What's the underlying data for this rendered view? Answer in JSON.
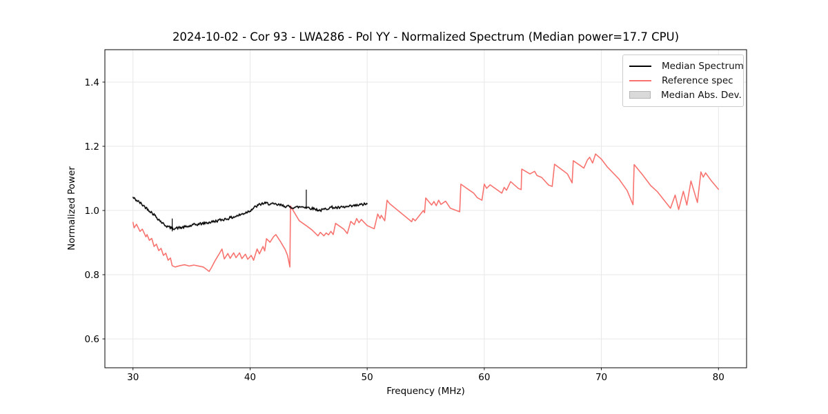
{
  "chart_data": {
    "type": "line",
    "title": "2024-10-02 - Cor 93 - LWA286 - Pol YY - Normalized Spectrum (Median power=17.7 CPU)",
    "xlabel": "Frequency (MHz)",
    "ylabel": "Normalized Power",
    "xlim": [
      27.6,
      82.4
    ],
    "ylim": [
      0.51,
      1.501
    ],
    "xticks": [
      30,
      40,
      50,
      60,
      70,
      80
    ],
    "yticks": [
      0.6,
      0.8,
      1.0,
      1.2,
      1.4
    ],
    "grid": true,
    "grid_color": "#e7e7e7",
    "legend_position": "upper right",
    "series": [
      {
        "name": "Median Spectrum",
        "color": "#000000",
        "width": 1.4,
        "noise_amp": 0.0045,
        "points": [
          [
            30.0,
            1.04
          ],
          [
            30.3,
            1.032
          ],
          [
            30.6,
            1.024
          ],
          [
            31.0,
            1.012
          ],
          [
            31.4,
            1.0
          ],
          [
            31.8,
            0.987
          ],
          [
            32.2,
            0.972
          ],
          [
            32.6,
            0.958
          ],
          [
            33.0,
            0.949
          ],
          [
            33.3,
            0.945
          ],
          [
            33.7,
            0.945
          ],
          [
            34.2,
            0.947
          ],
          [
            34.7,
            0.95
          ],
          [
            35.2,
            0.955
          ],
          [
            35.7,
            0.958
          ],
          [
            36.2,
            0.961
          ],
          [
            36.7,
            0.964
          ],
          [
            37.2,
            0.968
          ],
          [
            37.7,
            0.972
          ],
          [
            38.2,
            0.976
          ],
          [
            38.7,
            0.981
          ],
          [
            39.2,
            0.987
          ],
          [
            39.6,
            0.993
          ],
          [
            40.0,
            1.0
          ],
          [
            40.4,
            1.01
          ],
          [
            40.8,
            1.018
          ],
          [
            41.1,
            1.022
          ],
          [
            41.5,
            1.022
          ],
          [
            42.0,
            1.019
          ],
          [
            42.5,
            1.017
          ],
          [
            43.0,
            1.014
          ],
          [
            43.5,
            1.01
          ],
          [
            44.0,
            1.01
          ],
          [
            44.5,
            1.012
          ],
          [
            45.0,
            1.009
          ],
          [
            45.5,
            1.005
          ],
          [
            46.0,
            1.0
          ],
          [
            46.3,
            1.003
          ],
          [
            46.7,
            1.008
          ],
          [
            47.0,
            1.01
          ],
          [
            47.5,
            1.008
          ],
          [
            48.0,
            1.01
          ],
          [
            48.5,
            1.012
          ],
          [
            49.0,
            1.015
          ],
          [
            49.5,
            1.018
          ],
          [
            50.0,
            1.021
          ]
        ],
        "spikes": [
          {
            "x": 33.35,
            "y0": 0.935,
            "y1": 0.975
          },
          {
            "x": 44.8,
            "y0": 1.005,
            "y1": 1.065
          }
        ]
      },
      {
        "name": "Reference spec",
        "color": "#f8736f",
        "width": 1.6,
        "noise_amp": 0,
        "points": [
          [
            30.0,
            0.963
          ],
          [
            30.1,
            0.946
          ],
          [
            30.3,
            0.957
          ],
          [
            30.6,
            0.935
          ],
          [
            30.8,
            0.942
          ],
          [
            31.1,
            0.918
          ],
          [
            31.2,
            0.925
          ],
          [
            31.4,
            0.907
          ],
          [
            31.6,
            0.913
          ],
          [
            31.8,
            0.888
          ],
          [
            32.0,
            0.895
          ],
          [
            32.2,
            0.875
          ],
          [
            32.4,
            0.882
          ],
          [
            32.6,
            0.86
          ],
          [
            32.8,
            0.867
          ],
          [
            33.0,
            0.845
          ],
          [
            33.2,
            0.852
          ],
          [
            33.35,
            0.828
          ],
          [
            33.6,
            0.824
          ],
          [
            34.0,
            0.828
          ],
          [
            34.4,
            0.831
          ],
          [
            34.8,
            0.827
          ],
          [
            35.2,
            0.83
          ],
          [
            35.6,
            0.827
          ],
          [
            36.0,
            0.824
          ],
          [
            36.3,
            0.816
          ],
          [
            36.5,
            0.81
          ],
          [
            36.7,
            0.822
          ],
          [
            37.0,
            0.843
          ],
          [
            37.3,
            0.861
          ],
          [
            37.6,
            0.88
          ],
          [
            37.8,
            0.849
          ],
          [
            38.1,
            0.866
          ],
          [
            38.3,
            0.851
          ],
          [
            38.6,
            0.868
          ],
          [
            38.8,
            0.853
          ],
          [
            39.1,
            0.868
          ],
          [
            39.3,
            0.85
          ],
          [
            39.6,
            0.864
          ],
          [
            39.8,
            0.848
          ],
          [
            40.1,
            0.86
          ],
          [
            40.3,
            0.845
          ],
          [
            40.6,
            0.88
          ],
          [
            40.8,
            0.865
          ],
          [
            41.1,
            0.888
          ],
          [
            41.25,
            0.874
          ],
          [
            41.4,
            0.912
          ],
          [
            41.7,
            0.901
          ],
          [
            42.0,
            0.918
          ],
          [
            42.2,
            0.925
          ],
          [
            42.6,
            0.903
          ],
          [
            43.0,
            0.878
          ],
          [
            43.2,
            0.86
          ],
          [
            43.4,
            0.824
          ],
          [
            43.45,
            1.014
          ],
          [
            44.2,
            0.968
          ],
          [
            44.9,
            0.95
          ],
          [
            45.3,
            0.939
          ],
          [
            45.8,
            0.921
          ],
          [
            46.0,
            0.932
          ],
          [
            46.3,
            0.921
          ],
          [
            46.5,
            0.93
          ],
          [
            46.7,
            0.924
          ],
          [
            46.9,
            0.935
          ],
          [
            47.1,
            0.925
          ],
          [
            47.3,
            0.96
          ],
          [
            48.0,
            0.942
          ],
          [
            48.3,
            0.928
          ],
          [
            48.6,
            0.966
          ],
          [
            48.9,
            0.956
          ],
          [
            49.1,
            0.975
          ],
          [
            49.3,
            0.962
          ],
          [
            49.5,
            0.972
          ],
          [
            50.0,
            0.953
          ],
          [
            50.6,
            0.943
          ],
          [
            50.9,
            0.989
          ],
          [
            51.1,
            0.975
          ],
          [
            51.2,
            0.985
          ],
          [
            51.5,
            0.968
          ],
          [
            51.7,
            1.032
          ],
          [
            51.9,
            1.022
          ],
          [
            53.8,
            0.965
          ],
          [
            53.9,
            0.975
          ],
          [
            54.1,
            0.968
          ],
          [
            54.8,
            1.0
          ],
          [
            54.9,
            0.993
          ],
          [
            55.0,
            1.039
          ],
          [
            55.5,
            1.017
          ],
          [
            55.7,
            1.028
          ],
          [
            55.9,
            1.015
          ],
          [
            56.1,
            1.032
          ],
          [
            56.3,
            1.019
          ],
          [
            56.7,
            1.029
          ],
          [
            57.1,
            1.007
          ],
          [
            57.9,
            0.996
          ],
          [
            58.0,
            1.082
          ],
          [
            58.5,
            1.069
          ],
          [
            59.1,
            1.054
          ],
          [
            59.4,
            1.04
          ],
          [
            59.8,
            1.032
          ],
          [
            60.0,
            1.082
          ],
          [
            60.2,
            1.069
          ],
          [
            60.5,
            1.08
          ],
          [
            61.5,
            1.054
          ],
          [
            61.7,
            1.072
          ],
          [
            61.9,
            1.063
          ],
          [
            62.25,
            1.09
          ],
          [
            62.9,
            1.069
          ],
          [
            63.15,
            1.065
          ],
          [
            63.2,
            1.129
          ],
          [
            63.9,
            1.114
          ],
          [
            64.3,
            1.122
          ],
          [
            64.5,
            1.109
          ],
          [
            64.9,
            1.103
          ],
          [
            65.5,
            1.079
          ],
          [
            65.8,
            1.075
          ],
          [
            66.0,
            1.144
          ],
          [
            66.7,
            1.125
          ],
          [
            67.1,
            1.114
          ],
          [
            67.5,
            1.086
          ],
          [
            67.6,
            1.155
          ],
          [
            68.2,
            1.14
          ],
          [
            68.5,
            1.132
          ],
          [
            68.8,
            1.157
          ],
          [
            69.0,
            1.166
          ],
          [
            69.25,
            1.148
          ],
          [
            69.5,
            1.176
          ],
          [
            70.0,
            1.16
          ],
          [
            70.5,
            1.136
          ],
          [
            71.5,
            1.098
          ],
          [
            72.2,
            1.062
          ],
          [
            72.7,
            1.018
          ],
          [
            72.8,
            1.143
          ],
          [
            73.5,
            1.112
          ],
          [
            74.2,
            1.078
          ],
          [
            74.8,
            1.058
          ],
          [
            75.4,
            1.03
          ],
          [
            75.9,
            1.007
          ],
          [
            76.3,
            1.048
          ],
          [
            76.6,
            1.003
          ],
          [
            77.0,
            1.06
          ],
          [
            77.3,
            1.017
          ],
          [
            77.65,
            1.092
          ],
          [
            78.2,
            1.025
          ],
          [
            78.5,
            1.12
          ],
          [
            78.7,
            1.104
          ],
          [
            78.9,
            1.117
          ],
          [
            79.4,
            1.092
          ],
          [
            80.0,
            1.066
          ]
        ],
        "spikes": []
      }
    ],
    "band": {
      "name": "Median Abs. Dev.",
      "follows_series": 0,
      "halfwidth": 0.003,
      "fill": "#d9d9d9",
      "edge": "#b8b8b8"
    }
  },
  "legend": {
    "entries": [
      {
        "label": "Median Spectrum",
        "swatch": "line",
        "color": "#000000"
      },
      {
        "label": "Reference spec",
        "swatch": "line",
        "color": "#f8736f"
      },
      {
        "label": "Median Abs. Dev.",
        "swatch": "patch",
        "color": "#d9d9d9"
      }
    ]
  }
}
